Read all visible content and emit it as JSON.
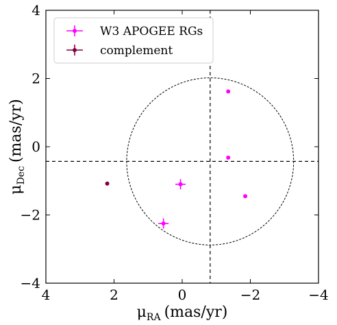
{
  "chart_data": {
    "type": "scatter",
    "title": "",
    "xlabel": "μRA (mas/yr)",
    "xlabel_parts": {
      "symbol": "μ",
      "subscript": "RA",
      "unit": "(mas/yr)"
    },
    "ylabel": "μDec (mas/yr)",
    "ylabel_parts": {
      "symbol": "μ",
      "subscript": "Dec",
      "unit": "(mas/yr)"
    },
    "xlim": [
      4,
      -4
    ],
    "ylim": [
      -4,
      4
    ],
    "x_inverted": true,
    "xticks": [
      4,
      2,
      0,
      -2,
      -4
    ],
    "yticks": [
      -4,
      -2,
      0,
      2,
      4
    ],
    "xtick_labels": [
      "4",
      "2",
      "0",
      "−2",
      "−4"
    ],
    "ytick_labels": [
      "−4",
      "−2",
      "0",
      "2",
      "4"
    ],
    "grid": false,
    "legend_position": "top-left",
    "series": [
      {
        "name": "W3 APOGEE RGs",
        "color": "#ff00ff",
        "marker": "circle",
        "points": [
          {
            "x": 0.05,
            "y": -1.1,
            "xerr": 0.15,
            "yerr": 0.15
          },
          {
            "x": 0.55,
            "y": -2.25,
            "xerr": 0.15,
            "yerr": 0.15
          },
          {
            "x": -1.35,
            "y": 1.62,
            "xerr": 0.05,
            "yerr": 0.05
          },
          {
            "x": -1.35,
            "y": -0.32,
            "xerr": 0.05,
            "yerr": 0.05
          },
          {
            "x": -1.85,
            "y": -1.45,
            "xerr": 0.05,
            "yerr": 0.05
          }
        ]
      },
      {
        "name": "complement",
        "color": "#800040",
        "marker": "circle",
        "points": [
          {
            "x": 2.2,
            "y": -1.08,
            "xerr": 0.05,
            "yerr": 0.05
          }
        ]
      }
    ],
    "reference_lines": {
      "x": -0.82,
      "y": -0.43,
      "style": "dashed"
    },
    "circle": {
      "center_x": -0.82,
      "center_y": -0.43,
      "radius": 2.45,
      "style": "dashed"
    }
  }
}
